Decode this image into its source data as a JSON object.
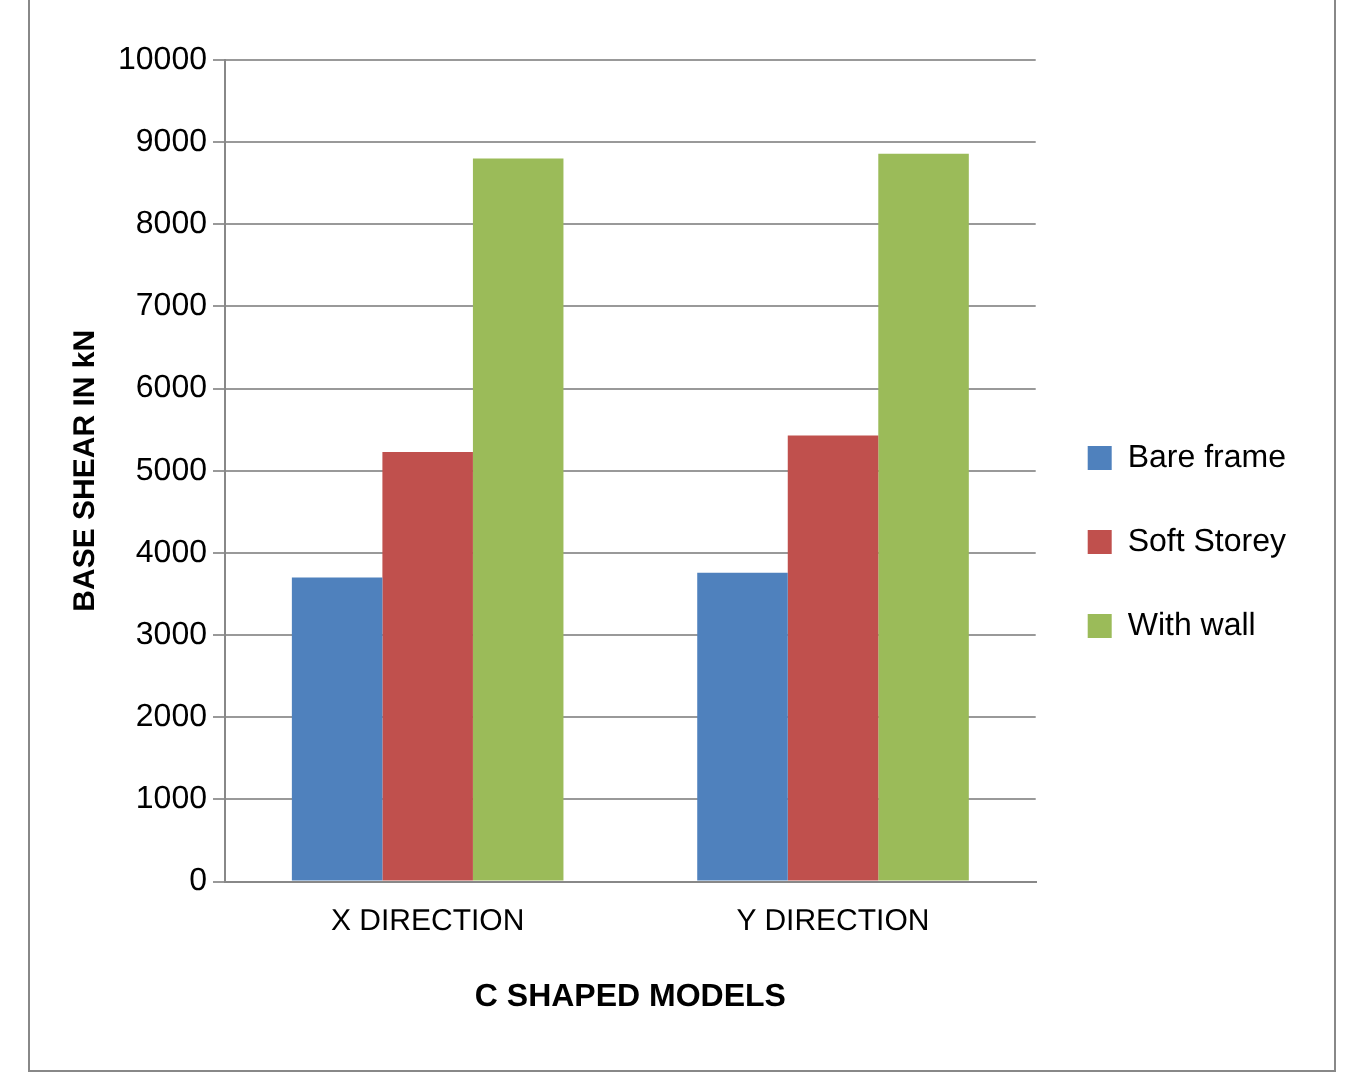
{
  "chart_data": {
    "type": "bar",
    "xlabel": "C SHAPED MODELS",
    "ylabel": "BASE SHEAR IN kN",
    "categories": [
      "X DIRECTION",
      "Y DIRECTION"
    ],
    "series": [
      {
        "name": "Bare frame",
        "color": "#4f81bd",
        "values": [
          3700,
          3760
        ]
      },
      {
        "name": "Soft Storey",
        "color": "#c0504d",
        "values": [
          5230,
          5430
        ]
      },
      {
        "name": "With wall",
        "color": "#9bbb59",
        "values": [
          8800,
          8860
        ]
      }
    ],
    "ylim": [
      0,
      10000
    ],
    "yticks": [
      0,
      1000,
      2000,
      3000,
      4000,
      5000,
      6000,
      7000,
      8000,
      9000,
      10000
    ],
    "grid": "y",
    "legend": "right"
  }
}
